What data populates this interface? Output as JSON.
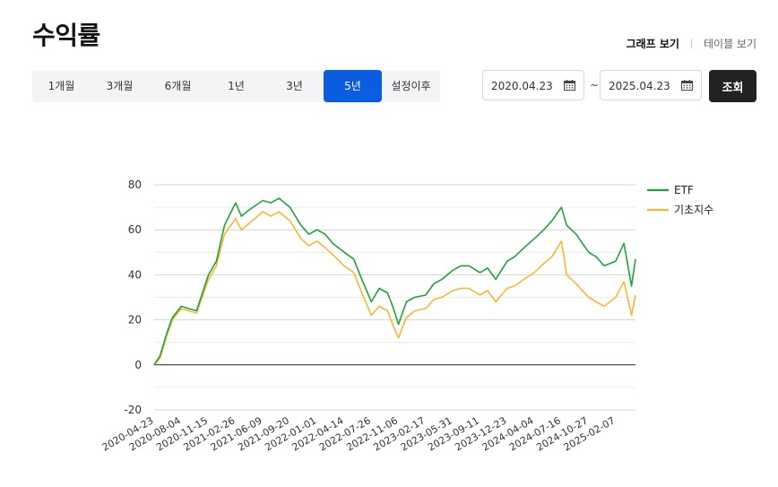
{
  "page": {
    "title": "수익률"
  },
  "view_toggle": {
    "graph": "그래프 보기",
    "table": "테이블 보기"
  },
  "periods": [
    "1개월",
    "3개월",
    "6개월",
    "1년",
    "3년",
    "5년",
    "설정이후"
  ],
  "active_period": "5년",
  "date_range": {
    "start": "2020.04.23",
    "separator": "~",
    "end": "2025.04.23"
  },
  "search_label": "조회",
  "colors": {
    "etf": "#1aa638",
    "index": "#f5b82e",
    "accent": "#0a5ce1"
  },
  "chart_data": {
    "type": "line",
    "x": [
      "2020-04-23",
      "2020-05-15",
      "2020-06-10",
      "2020-07-01",
      "2020-08-04",
      "2020-09-01",
      "2020-10-01",
      "2020-11-15",
      "2020-12-15",
      "2021-01-15",
      "2021-02-26",
      "2021-03-20",
      "2021-04-20",
      "2021-06-09",
      "2021-07-10",
      "2021-08-10",
      "2021-09-20",
      "2021-11-01",
      "2021-12-01",
      "2022-01-01",
      "2022-02-01",
      "2022-03-01",
      "2022-04-14",
      "2022-05-20",
      "2022-06-20",
      "2022-07-26",
      "2022-08-25",
      "2022-09-25",
      "2022-10-15",
      "2022-11-06",
      "2022-12-06",
      "2023-01-06",
      "2023-02-17",
      "2023-03-20",
      "2023-04-20",
      "2023-05-31",
      "2023-06-30",
      "2023-08-01",
      "2023-09-11",
      "2023-10-10",
      "2023-11-10",
      "2023-12-23",
      "2024-01-20",
      "2024-02-25",
      "2024-04-04",
      "2024-05-10",
      "2024-06-10",
      "2024-07-16",
      "2024-08-05",
      "2024-09-10",
      "2024-10-27",
      "2024-11-25",
      "2024-12-25",
      "2025-02-07",
      "2025-03-10",
      "2025-04-08",
      "2025-04-23"
    ],
    "series": [
      {
        "name": "ETF",
        "values": [
          0,
          4,
          14,
          21,
          26,
          25,
          24,
          40,
          46,
          62,
          72,
          66,
          69,
          73,
          72,
          74,
          70,
          62,
          58,
          60,
          58,
          54,
          50,
          47,
          38,
          28,
          34,
          32,
          26,
          18,
          28,
          30,
          31,
          36,
          38,
          42,
          44,
          44,
          41,
          43,
          38,
          46,
          48,
          52,
          56,
          60,
          64,
          70,
          62,
          58,
          50,
          48,
          44,
          46,
          54,
          35,
          47
        ]
      },
      {
        "name": "기초지수",
        "values": [
          0,
          3,
          13,
          20,
          25,
          24,
          23,
          38,
          44,
          58,
          65,
          60,
          63,
          68,
          66,
          68,
          64,
          56,
          53,
          55,
          52,
          49,
          44,
          41,
          32,
          22,
          26,
          24,
          18,
          12,
          21,
          24,
          25,
          29,
          30,
          33,
          34,
          34,
          31,
          33,
          28,
          34,
          35,
          38,
          41,
          45,
          48,
          55,
          40,
          36,
          30,
          28,
          26,
          30,
          37,
          22,
          31
        ]
      }
    ],
    "xticks": [
      "2020-04-23",
      "2020-08-04",
      "2020-11-15",
      "2021-02-26",
      "2021-06-09",
      "2021-09-20",
      "2022-01-01",
      "2022-04-14",
      "2022-07-26",
      "2022-11-06",
      "2023-02-17",
      "2023-05-31",
      "2023-09-11",
      "2023-12-23",
      "2024-04-04",
      "2024-07-16",
      "2024-10-27",
      "2025-02-07"
    ],
    "yticks": [
      -20,
      0,
      20,
      40,
      60,
      80
    ],
    "ylim": [
      -20,
      80
    ],
    "legend_position": "right",
    "grid": true
  }
}
